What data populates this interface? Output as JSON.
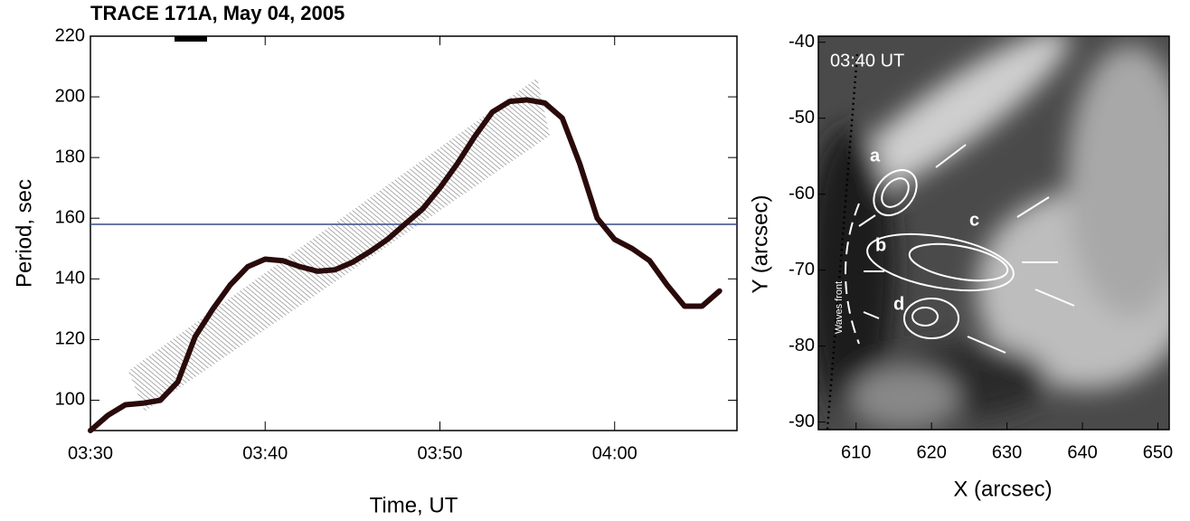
{
  "chart_data": [
    {
      "type": "line",
      "title": "TRACE 171A,  May 04, 2005",
      "x_label": "Time, UT",
      "y_label": "Period, sec",
      "x": [
        "03:30",
        "03:31",
        "03:32",
        "03:33",
        "03:34",
        "03:35",
        "03:36",
        "03:37",
        "03:38",
        "03:39",
        "03:40",
        "03:41",
        "03:42",
        "03:43",
        "03:44",
        "03:45",
        "03:46",
        "03:47",
        "03:48",
        "03:49",
        "03:50",
        "03:51",
        "03:52",
        "03:53",
        "03:54",
        "03:55",
        "03:56",
        "03:57",
        "03:58",
        "03:59",
        "04:00",
        "04:01",
        "04:02",
        "04:03",
        "04:04",
        "04:05",
        "04:06"
      ],
      "series": [
        {
          "color": "#2a0a0a",
          "values": [
            90,
            95,
            98.5,
            99,
            100,
            106,
            121,
            130,
            138,
            144,
            146.5,
            146,
            144,
            142.5,
            143,
            145.5,
            149,
            153,
            158,
            163,
            170,
            178,
            187,
            195,
            198.5,
            199,
            198,
            193,
            178,
            160,
            153,
            150,
            146,
            138,
            131,
            131,
            136
          ]
        }
      ],
      "hline": 158,
      "hline_color": "#3a4a8a",
      "xlim": [
        "03:30",
        "04:07"
      ],
      "xticks": [
        "03:30",
        "03:40",
        "03:50",
        "04:00"
      ],
      "ylim": [
        90,
        220
      ],
      "yticks": [
        100,
        120,
        140,
        160,
        180,
        200,
        220
      ]
    },
    {
      "type": "image",
      "x_label": "X (arcsec)",
      "y_label": "Y (arcsec)",
      "annotations": [
        "03:40 UT",
        "a",
        "b",
        "c",
        "d",
        "Waves front"
      ],
      "xlim": [
        605,
        651.5
      ],
      "xticks": [
        610,
        620,
        630,
        640,
        650
      ],
      "ylim": [
        -91,
        -39.2
      ],
      "yticks": [
        -90,
        -80,
        -70,
        -60,
        -50,
        -40
      ]
    }
  ]
}
